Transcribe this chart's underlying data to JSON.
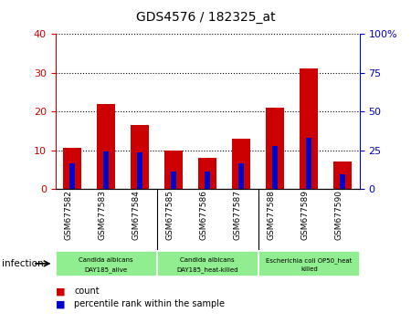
{
  "title": "GDS4576 / 182325_at",
  "samples": [
    "GSM677582",
    "GSM677583",
    "GSM677584",
    "GSM677585",
    "GSM677586",
    "GSM677587",
    "GSM677588",
    "GSM677589",
    "GSM677590"
  ],
  "counts": [
    10.5,
    22.0,
    16.5,
    10.0,
    8.0,
    13.0,
    21.0,
    31.0,
    7.0
  ],
  "percentile_ranks": [
    16.5,
    24.0,
    23.5,
    11.5,
    11.0,
    16.5,
    27.5,
    33.0,
    9.5
  ],
  "left_ylim": [
    0,
    40
  ],
  "right_ylim": [
    0,
    100
  ],
  "left_yticks": [
    0,
    10,
    20,
    30,
    40
  ],
  "right_yticks": [
    0,
    25,
    50,
    75,
    100
  ],
  "right_yticklabels": [
    "0",
    "25",
    "50",
    "75",
    "100%"
  ],
  "bar_color": "#cc0000",
  "percentile_color": "#0000cc",
  "bar_width": 0.55,
  "percentile_bar_width": 0.15,
  "groups": [
    {
      "label": "Candida albicans\nDAY185_alive",
      "start": 0,
      "end": 3,
      "color": "#90ee90"
    },
    {
      "label": "Candida albicans\nDAY185_heat-killed",
      "start": 3,
      "end": 6,
      "color": "#90ee90"
    },
    {
      "label": "Escherichia coli OP50_heat\nkilled",
      "start": 6,
      "end": 9,
      "color": "#90ee90"
    }
  ],
  "infection_label": "infection",
  "legend_count_label": "count",
  "legend_percentile_label": "percentile rank within the sample",
  "left_axis_color": "#cc0000",
  "right_axis_color": "#0000cc",
  "tick_area_bg": "#cccccc",
  "group_divider_color": "#888888"
}
